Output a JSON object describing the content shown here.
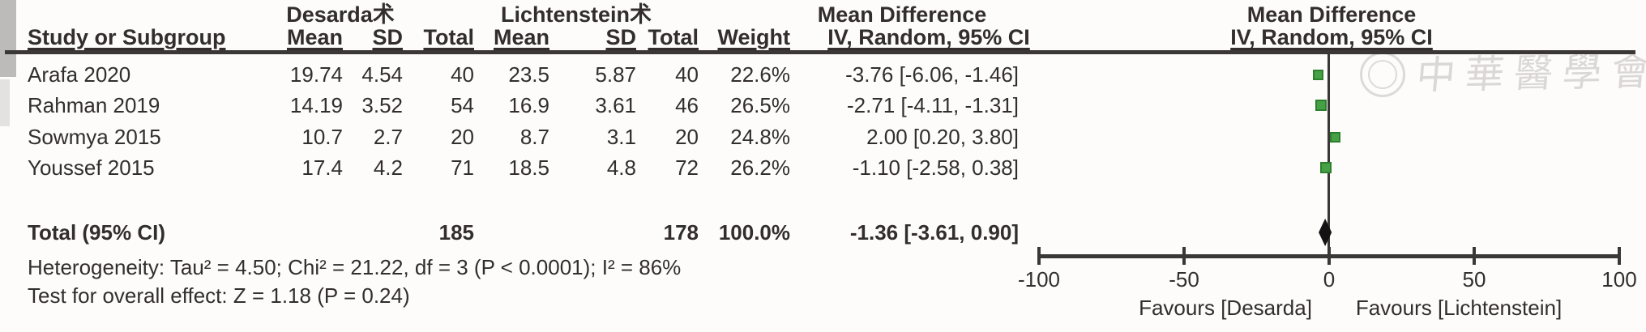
{
  "header": {
    "group1": "Desarda术",
    "group2": "Lichtenstein术",
    "effect_title_left": "Mean Difference",
    "effect_title_right": "Mean Difference",
    "col_study": "Study or Subgroup",
    "col_mean1": "Mean",
    "col_sd1": "SD",
    "col_total1": "Total",
    "col_mean2": "Mean",
    "col_sd2": "SD",
    "col_total2": "Total",
    "col_weight": "Weight",
    "col_ci_left": "IV, Random, 95% CI",
    "col_ci_right": "IV, Random, 95% CI"
  },
  "studies": [
    {
      "name": "Arafa 2020",
      "mean1": "19.74",
      "sd1": "4.54",
      "total1": "40",
      "mean2": "23.5",
      "sd2": "5.87",
      "total2": "40",
      "weight": "22.6%",
      "ci": "-3.76 [-6.06, -1.46]"
    },
    {
      "name": "Rahman 2019",
      "mean1": "14.19",
      "sd1": "3.52",
      "total1": "54",
      "mean2": "16.9",
      "sd2": "3.61",
      "total2": "46",
      "weight": "26.5%",
      "ci": "-2.71 [-4.11, -1.31]"
    },
    {
      "name": "Sowmya 2015",
      "mean1": "10.7",
      "sd1": "2.7",
      "total1": "20",
      "mean2": "8.7",
      "sd2": "3.1",
      "total2": "20",
      "weight": "24.8%",
      "ci": "2.00 [0.20, 3.80]"
    },
    {
      "name": "Youssef 2015",
      "mean1": "17.4",
      "sd1": "4.2",
      "total1": "71",
      "mean2": "18.5",
      "sd2": "4.8",
      "total2": "72",
      "weight": "26.2%",
      "ci": "-1.10 [-2.58, 0.38]"
    }
  ],
  "total": {
    "label": "Total (95% CI)",
    "total1": "185",
    "total2": "178",
    "weight": "100.0%",
    "ci": "-1.36 [-3.61, 0.90]"
  },
  "footnotes": {
    "heterogeneity": "Heterogeneity: Tau² = 4.50; Chi² = 21.22, df = 3 (P < 0.0001); I² = 86%",
    "overall_effect": "Test for overall effect: Z = 1.18 (P = 0.24)"
  },
  "axis": {
    "ticks": [
      "-100",
      "-50",
      "0",
      "50",
      "100"
    ],
    "favours_left": "Favours [Desarda]",
    "favours_right": "Favours [Lichtenstein]"
  },
  "watermark": {
    "text": "中華醫學會"
  },
  "chart_data": {
    "type": "scatter",
    "subtype": "forest-plot",
    "title": "Mean Difference — IV, Random, 95% CI",
    "studies": [
      "Arafa 2020",
      "Rahman 2019",
      "Sowmya 2015",
      "Youssef 2015"
    ],
    "md": [
      -3.76,
      -2.71,
      2.0,
      -1.1
    ],
    "ci_low": [
      -6.06,
      -4.11,
      0.2,
      -2.58
    ],
    "ci_high": [
      -1.46,
      -1.31,
      3.8,
      0.38
    ],
    "weights_pct": [
      22.6,
      26.5,
      24.8,
      26.2
    ],
    "group1_totals": [
      40,
      54,
      20,
      71
    ],
    "group2_totals": [
      40,
      46,
      20,
      72
    ],
    "pooled": {
      "md": -1.36,
      "ci_low": -3.61,
      "ci_high": 0.9,
      "total1": 185,
      "total2": 178,
      "weight_pct": 100.0
    },
    "heterogeneity": {
      "tau2": 4.5,
      "chi2": 21.22,
      "df": 3,
      "p": "< 0.0001",
      "i2_pct": 86
    },
    "overall_effect": {
      "z": 1.18,
      "p": "= 0.24"
    },
    "xlim": [
      -100,
      100
    ],
    "xticks": [
      -100,
      -50,
      0,
      50,
      100
    ],
    "xlabel_left": "Favours [Desarda]",
    "xlabel_right": "Favours [Lichtenstein]",
    "marker_color": "#46a146",
    "pooled_marker_color": "#151213",
    "grid": false,
    "legend": false
  }
}
